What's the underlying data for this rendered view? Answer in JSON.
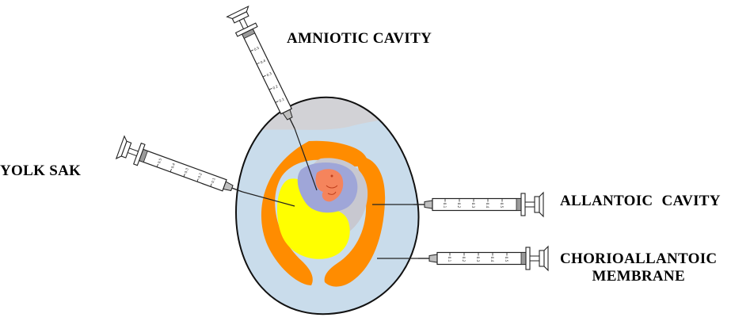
{
  "labels": {
    "amniotic_cavity": "AMNIOTIC CAVITY",
    "yolk_sac": "YOLK SAK",
    "allantoic_cavity": "ALLANTOIC  CAVITY",
    "chorioallantoic_line1": "CHORIOALLANTOIC",
    "chorioallantoic_line2": "MEMBRANE"
  },
  "colors": {
    "egg_fluid": "#c9dceb",
    "air_sac": "#d2d2d6",
    "chorioallantoic": "#ff8c00",
    "yolk": "#ffff00",
    "amnion": "#9fa6d8",
    "allantois_grey": "#c8c8d0",
    "embryo": "#f5845c"
  },
  "syringe_scale": [
    "0.1",
    "0.2",
    "0.3",
    "0.4",
    "0.5"
  ]
}
